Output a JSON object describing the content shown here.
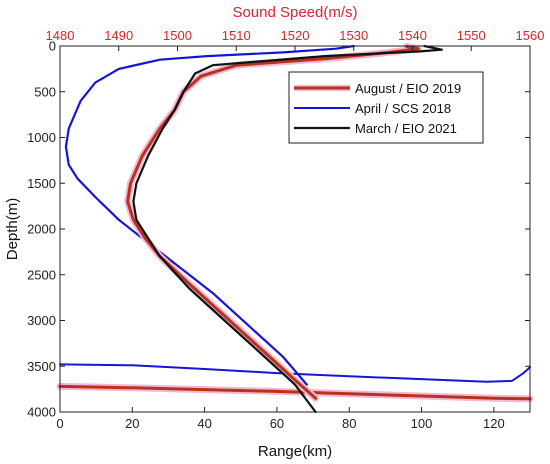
{
  "chart_data": {
    "type": "line",
    "title": "",
    "top_axis": {
      "label": "Sound Speed(m/s)",
      "range": [
        1480,
        1560
      ],
      "ticks": [
        1480,
        1490,
        1500,
        1510,
        1520,
        1530,
        1540,
        1550,
        1560
      ],
      "color": "#d9262a"
    },
    "bottom_axis": {
      "label": "Range(km)",
      "range": [
        0,
        130
      ],
      "ticks": [
        0,
        20,
        40,
        60,
        80,
        100,
        120
      ]
    },
    "left_axis": {
      "label": "Depth(m)",
      "range": [
        0,
        4000
      ],
      "inverted": true,
      "ticks": [
        0,
        500,
        1000,
        1500,
        2000,
        2500,
        3000,
        3500,
        4000
      ]
    },
    "grid": false,
    "legend_position": "top-right",
    "sound_speed_profiles": [
      {
        "name": "August / EIO 2019",
        "color": "#b5331f",
        "halo": "#f4b8d4",
        "points": [
          [
            1539,
            5
          ],
          [
            1541,
            30
          ],
          [
            1536,
            70
          ],
          [
            1525,
            140
          ],
          [
            1510,
            210
          ],
          [
            1504,
            330
          ],
          [
            1501,
            500
          ],
          [
            1499.5,
            700
          ],
          [
            1497,
            900
          ],
          [
            1494,
            1200
          ],
          [
            1492,
            1500
          ],
          [
            1491.5,
            1700
          ],
          [
            1492.5,
            1900
          ],
          [
            1494.5,
            2100
          ],
          [
            1497,
            2300
          ],
          [
            1502,
            2600
          ],
          [
            1508,
            2950
          ],
          [
            1514,
            3300
          ],
          [
            1520,
            3650
          ],
          [
            1523.5,
            3850
          ]
        ]
      },
      {
        "name": "April / SCS 2018",
        "color": "#1515d6",
        "points": [
          [
            1530,
            0
          ],
          [
            1527,
            30
          ],
          [
            1518,
            70
          ],
          [
            1505,
            110
          ],
          [
            1497,
            150
          ],
          [
            1490,
            250
          ],
          [
            1486,
            400
          ],
          [
            1483.5,
            600
          ],
          [
            1481.5,
            900
          ],
          [
            1481,
            1100
          ],
          [
            1481.5,
            1300
          ],
          [
            1483,
            1450
          ],
          [
            1486,
            1650
          ],
          [
            1490,
            1900
          ],
          [
            1495,
            2150
          ],
          [
            1500,
            2400
          ],
          [
            1506,
            2700
          ],
          [
            1512,
            3050
          ],
          [
            1518,
            3400
          ],
          [
            1522,
            3700
          ]
        ]
      },
      {
        "name": "March / EIO 2021",
        "color": "#111111",
        "points": [
          [
            1542,
            0
          ],
          [
            1545,
            40
          ],
          [
            1541,
            60
          ],
          [
            1525,
            110
          ],
          [
            1506,
            210
          ],
          [
            1503,
            300
          ],
          [
            1501,
            500
          ],
          [
            1499.5,
            700
          ],
          [
            1497.5,
            900
          ],
          [
            1495,
            1200
          ],
          [
            1493,
            1500
          ],
          [
            1492.5,
            1700
          ],
          [
            1493,
            1900
          ],
          [
            1495,
            2100
          ],
          [
            1497,
            2300
          ],
          [
            1502,
            2650
          ],
          [
            1508,
            3000
          ],
          [
            1514,
            3350
          ],
          [
            1520,
            3700
          ],
          [
            1523.5,
            4000
          ]
        ]
      }
    ],
    "bottom_ray_paths": [
      {
        "name": "April / SCS 2018",
        "color": "#1515d6",
        "points": [
          [
            0,
            3480
          ],
          [
            20,
            3490
          ],
          [
            40,
            3530
          ],
          [
            60,
            3575
          ],
          [
            80,
            3610
          ],
          [
            100,
            3640
          ],
          [
            118,
            3670
          ],
          [
            125,
            3660
          ],
          [
            128,
            3580
          ],
          [
            130,
            3510
          ]
        ]
      },
      {
        "name": "August / EIO 2019",
        "color": "#b5331f",
        "halo": "#f4b8d4",
        "points": [
          [
            0,
            3720
          ],
          [
            20,
            3735
          ],
          [
            40,
            3755
          ],
          [
            60,
            3775
          ],
          [
            80,
            3800
          ],
          [
            100,
            3825
          ],
          [
            120,
            3850
          ],
          [
            130,
            3855
          ]
        ]
      }
    ],
    "legend": [
      {
        "label": "August / EIO 2019",
        "color": "#b5331f"
      },
      {
        "label": "April / SCS 2018",
        "color": "#1515d6"
      },
      {
        "label": "March / EIO 2021",
        "color": "#111111"
      }
    ]
  }
}
